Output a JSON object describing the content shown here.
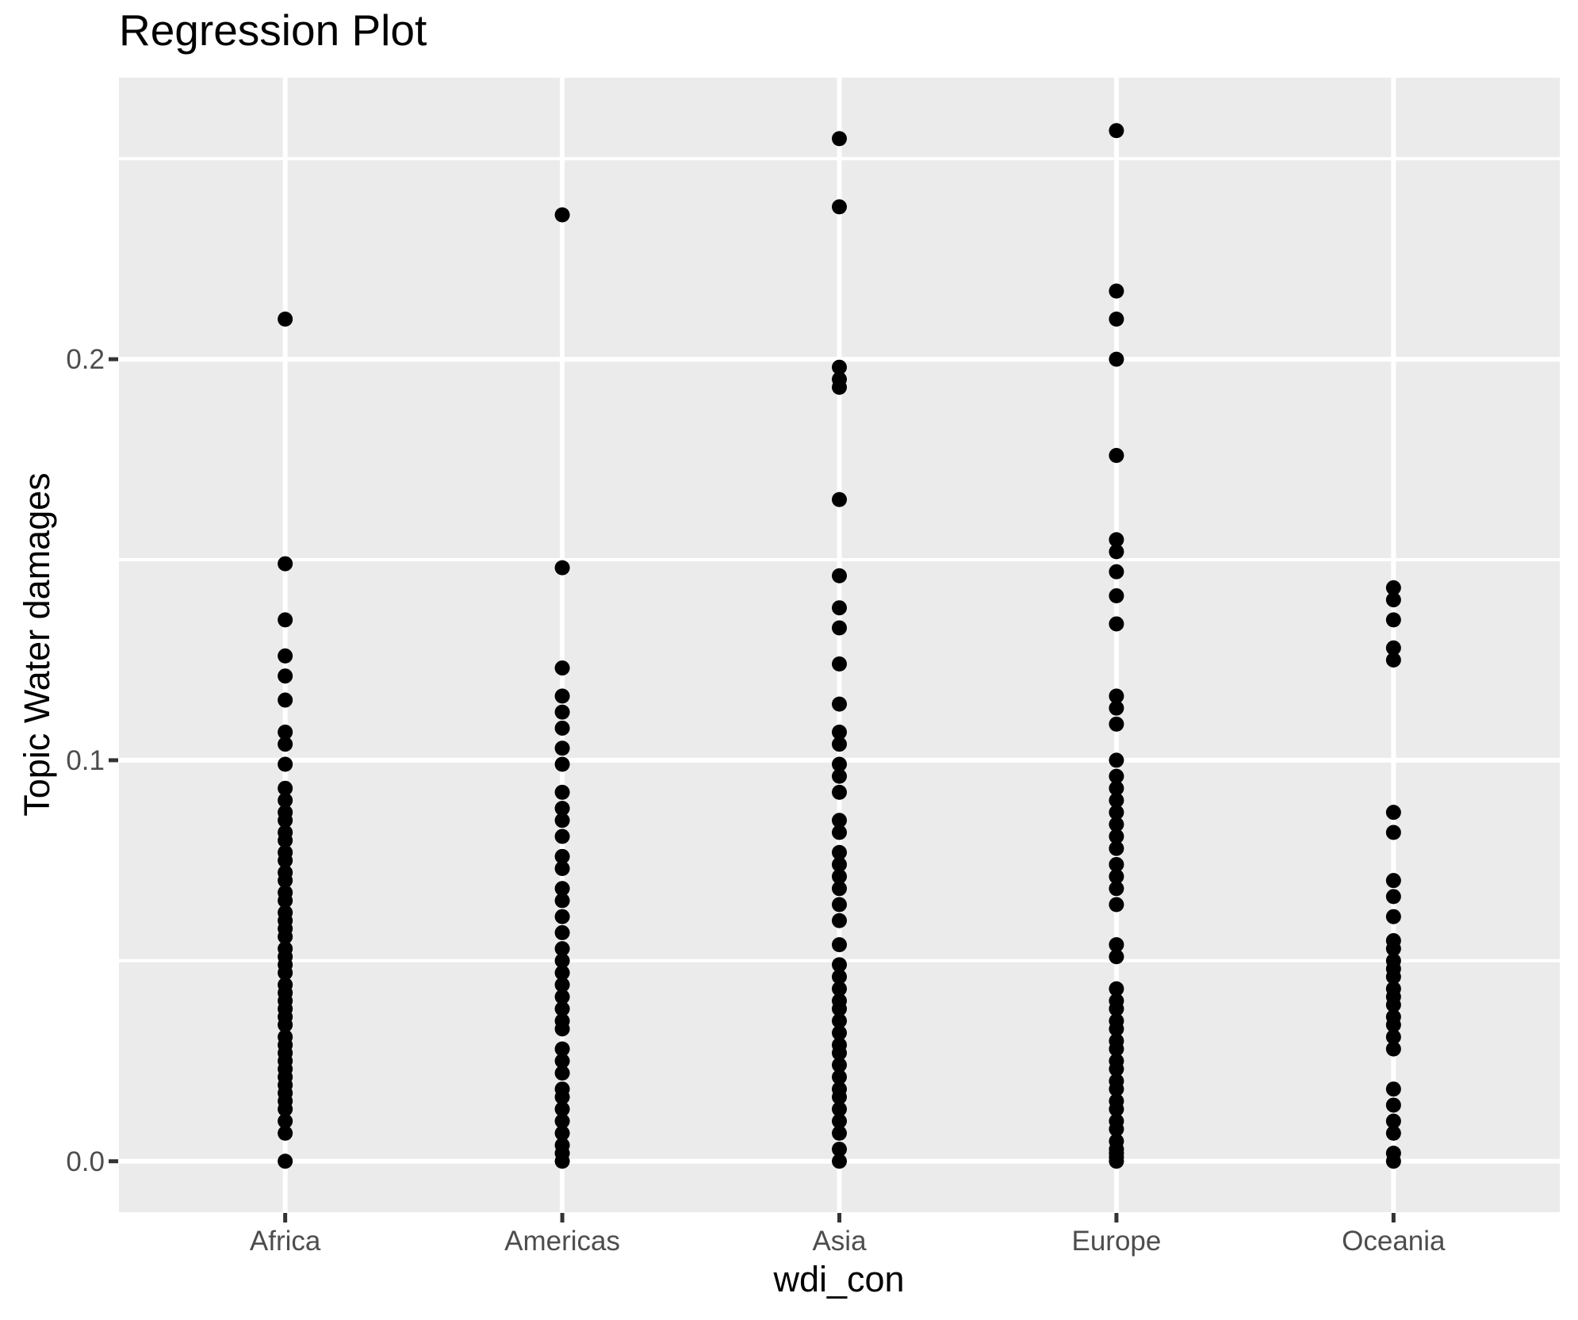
{
  "chart_data": {
    "type": "scatter",
    "subtype": "categorical-strip-plot",
    "title": "Regression Plot",
    "xlabel": "wdi_con",
    "ylabel": "Topic Water damages",
    "legend": "none",
    "grid": "white major and minor horizontal lines plus white vertical category lines on grey panel",
    "panel_bg": "#EBEBEB",
    "grid_color": "#FFFFFF",
    "point_color": "#000000",
    "tick_label_color": "#4D4D4D",
    "tick_mark_color": "#333333",
    "title_color": "#000000",
    "ylim": [
      -0.0127,
      0.2702
    ],
    "y_ticks": [
      {
        "label": "0.0",
        "value": 0.0
      },
      {
        "label": "0.1",
        "value": 0.1
      },
      {
        "label": "0.2",
        "value": 0.2
      }
    ],
    "y_minor_ticks": [
      0.05,
      0.15,
      0.25
    ],
    "categories": [
      "Africa",
      "Americas",
      "Asia",
      "Europe",
      "Oceania"
    ],
    "series": [
      {
        "name": "Africa",
        "values": [
          0.21,
          0.149,
          0.135,
          0.126,
          0.121,
          0.115,
          0.107,
          0.104,
          0.099,
          0.093,
          0.09,
          0.087,
          0.085,
          0.082,
          0.08,
          0.077,
          0.075,
          0.072,
          0.07,
          0.067,
          0.065,
          0.062,
          0.06,
          0.058,
          0.056,
          0.053,
          0.051,
          0.049,
          0.047,
          0.044,
          0.042,
          0.04,
          0.038,
          0.036,
          0.034,
          0.031,
          0.029,
          0.027,
          0.025,
          0.023,
          0.021,
          0.019,
          0.017,
          0.015,
          0.013,
          0.01,
          0.007,
          0.0
        ]
      },
      {
        "name": "Americas",
        "values": [
          0.236,
          0.148,
          0.123,
          0.116,
          0.112,
          0.108,
          0.103,
          0.099,
          0.092,
          0.088,
          0.085,
          0.081,
          0.076,
          0.073,
          0.068,
          0.065,
          0.061,
          0.057,
          0.053,
          0.05,
          0.047,
          0.044,
          0.041,
          0.038,
          0.035,
          0.033,
          0.028,
          0.025,
          0.022,
          0.018,
          0.016,
          0.013,
          0.01,
          0.007,
          0.004,
          0.002,
          0.0
        ]
      },
      {
        "name": "Asia",
        "values": [
          0.255,
          0.238,
          0.198,
          0.195,
          0.193,
          0.165,
          0.146,
          0.138,
          0.133,
          0.124,
          0.114,
          0.107,
          0.104,
          0.099,
          0.096,
          0.092,
          0.085,
          0.082,
          0.077,
          0.074,
          0.071,
          0.068,
          0.064,
          0.06,
          0.054,
          0.049,
          0.046,
          0.043,
          0.04,
          0.038,
          0.035,
          0.032,
          0.029,
          0.027,
          0.024,
          0.021,
          0.018,
          0.016,
          0.013,
          0.01,
          0.007,
          0.003,
          0.0
        ]
      },
      {
        "name": "Europe",
        "values": [
          0.257,
          0.217,
          0.21,
          0.2,
          0.176,
          0.155,
          0.152,
          0.147,
          0.141,
          0.134,
          0.116,
          0.113,
          0.109,
          0.1,
          0.096,
          0.093,
          0.09,
          0.087,
          0.084,
          0.081,
          0.078,
          0.074,
          0.071,
          0.068,
          0.064,
          0.054,
          0.051,
          0.043,
          0.04,
          0.038,
          0.035,
          0.033,
          0.03,
          0.028,
          0.025,
          0.023,
          0.02,
          0.018,
          0.015,
          0.013,
          0.01,
          0.008,
          0.005,
          0.003,
          0.002,
          0.001,
          0.0
        ]
      },
      {
        "name": "Oceania",
        "values": [
          0.143,
          0.14,
          0.135,
          0.128,
          0.125,
          0.087,
          0.082,
          0.07,
          0.066,
          0.061,
          0.055,
          0.053,
          0.05,
          0.048,
          0.046,
          0.043,
          0.041,
          0.039,
          0.036,
          0.034,
          0.031,
          0.028,
          0.018,
          0.014,
          0.01,
          0.007,
          0.002,
          0.0
        ]
      }
    ]
  }
}
